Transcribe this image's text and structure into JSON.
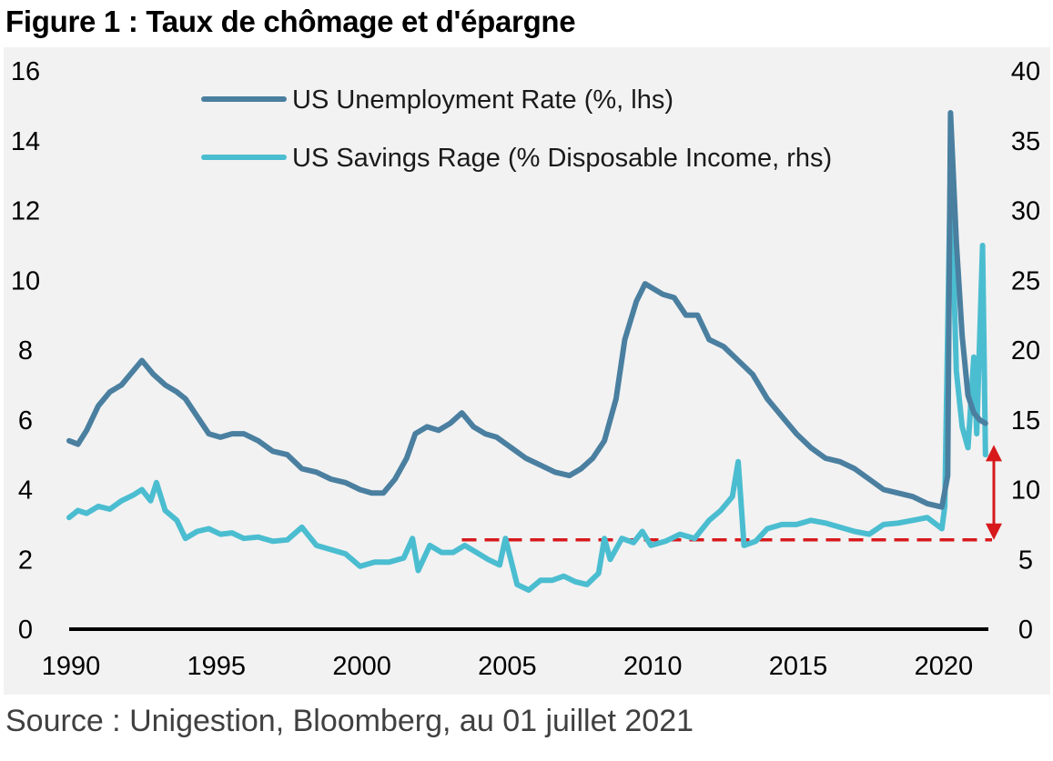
{
  "figure_title": "Figure 1 : Taux de chômage et d'épargne",
  "source": "Source : Unigestion, Bloomberg, au 01 juillet 2021",
  "chart_data": {
    "type": "line",
    "title": "",
    "xlabel": "",
    "ylabel_left": "",
    "ylabel_right": "",
    "xlim": [
      1990,
      2021.6
    ],
    "ylim_left": [
      0,
      16
    ],
    "ylim_right": [
      0,
      40
    ],
    "x_ticks": [
      1990,
      1995,
      2000,
      2005,
      2010,
      2015,
      2020
    ],
    "y_left_ticks": [
      0,
      2,
      4,
      6,
      8,
      10,
      12,
      14,
      16
    ],
    "y_right_ticks": [
      0,
      5,
      10,
      15,
      20,
      25,
      30,
      35,
      40
    ],
    "grid": false,
    "legend_position": "top-left",
    "series": [
      {
        "name": "US Unemployment Rate (%, lhs)",
        "axis": "left",
        "color": "#4a7fa0",
        "x": [
          1990.0,
          1990.3,
          1990.6,
          1991.0,
          1991.4,
          1991.8,
          1992.2,
          1992.5,
          1992.9,
          1993.3,
          1993.7,
          1994.0,
          1994.4,
          1994.8,
          1995.2,
          1995.6,
          1996.0,
          1996.5,
          1997.0,
          1997.5,
          1998.0,
          1998.5,
          1999.0,
          1999.5,
          2000.0,
          2000.4,
          2000.8,
          2001.2,
          2001.6,
          2001.9,
          2002.3,
          2002.7,
          2003.1,
          2003.5,
          2003.9,
          2004.3,
          2004.7,
          2005.2,
          2005.7,
          2006.2,
          2006.7,
          2007.2,
          2007.6,
          2008.0,
          2008.4,
          2008.8,
          2009.1,
          2009.5,
          2009.8,
          2010.0,
          2010.4,
          2010.8,
          2011.2,
          2011.6,
          2012.0,
          2012.5,
          2013.0,
          2013.5,
          2014.0,
          2014.5,
          2015.0,
          2015.5,
          2016.0,
          2016.5,
          2017.0,
          2017.5,
          2018.0,
          2018.5,
          2019.0,
          2019.5,
          2020.0,
          2020.2,
          2020.3,
          2020.5,
          2020.7,
          2020.9,
          2021.1,
          2021.3,
          2021.5
        ],
        "values": [
          5.4,
          5.3,
          5.7,
          6.4,
          6.8,
          7.0,
          7.4,
          7.7,
          7.3,
          7.0,
          6.8,
          6.6,
          6.1,
          5.6,
          5.5,
          5.6,
          5.6,
          5.4,
          5.1,
          5.0,
          4.6,
          4.5,
          4.3,
          4.2,
          4.0,
          3.9,
          3.9,
          4.3,
          4.9,
          5.6,
          5.8,
          5.7,
          5.9,
          6.2,
          5.8,
          5.6,
          5.5,
          5.2,
          4.9,
          4.7,
          4.5,
          4.4,
          4.6,
          4.9,
          5.4,
          6.6,
          8.3,
          9.4,
          9.9,
          9.8,
          9.6,
          9.5,
          9.0,
          9.0,
          8.3,
          8.1,
          7.7,
          7.3,
          6.6,
          6.1,
          5.6,
          5.2,
          4.9,
          4.8,
          4.6,
          4.3,
          4.0,
          3.9,
          3.8,
          3.6,
          3.5,
          4.4,
          14.8,
          11.1,
          8.4,
          6.7,
          6.2,
          6.0,
          5.9
        ]
      },
      {
        "name": "US Savings Rage (% Disposable Income, rhs)",
        "axis": "right",
        "color": "#4bbdd0",
        "x": [
          1990.0,
          1990.3,
          1990.6,
          1991.0,
          1991.4,
          1991.8,
          1992.2,
          1992.5,
          1992.8,
          1993.0,
          1993.3,
          1993.7,
          1994.0,
          1994.4,
          1994.8,
          1995.2,
          1995.6,
          1996.0,
          1996.5,
          1997.0,
          1997.5,
          1998.0,
          1998.5,
          1999.0,
          1999.5,
          2000.0,
          2000.5,
          2001.0,
          2001.5,
          2001.8,
          2002.0,
          2002.4,
          2002.8,
          2003.2,
          2003.6,
          2004.0,
          2004.4,
          2004.8,
          2005.0,
          2005.4,
          2005.8,
          2006.2,
          2006.6,
          2007.0,
          2007.4,
          2007.8,
          2008.2,
          2008.4,
          2008.6,
          2009.0,
          2009.4,
          2009.7,
          2010.0,
          2010.5,
          2011.0,
          2011.5,
          2012.0,
          2012.4,
          2012.8,
          2013.0,
          2013.2,
          2013.6,
          2014.0,
          2014.5,
          2015.0,
          2015.5,
          2016.0,
          2016.5,
          2017.0,
          2017.5,
          2018.0,
          2018.5,
          2019.0,
          2019.5,
          2020.0,
          2020.1,
          2020.3,
          2020.5,
          2020.7,
          2020.9,
          2021.1,
          2021.2,
          2021.4,
          2021.5
        ],
        "values": [
          8.0,
          8.5,
          8.3,
          8.8,
          8.6,
          9.2,
          9.6,
          10.0,
          9.2,
          10.5,
          8.5,
          7.8,
          6.5,
          7.0,
          7.2,
          6.8,
          6.9,
          6.5,
          6.6,
          6.3,
          6.4,
          7.3,
          6.0,
          5.7,
          5.4,
          4.5,
          4.8,
          4.8,
          5.1,
          6.5,
          4.2,
          6.0,
          5.5,
          5.5,
          6.0,
          5.5,
          5.0,
          4.6,
          6.5,
          3.2,
          2.8,
          3.5,
          3.5,
          3.8,
          3.4,
          3.2,
          4.0,
          6.5,
          5.0,
          6.5,
          6.2,
          7.0,
          6.0,
          6.3,
          6.8,
          6.5,
          7.8,
          8.5,
          9.5,
          12.0,
          6.0,
          6.3,
          7.2,
          7.5,
          7.5,
          7.8,
          7.6,
          7.3,
          7.0,
          6.8,
          7.5,
          7.6,
          7.8,
          8.0,
          7.2,
          8.8,
          33.5,
          18.5,
          14.5,
          13.0,
          19.5,
          14.0,
          27.5,
          12.5
        ]
      }
    ],
    "annotations": {
      "reference_level_rhs": 6.4,
      "reference_from_year": 2003.5,
      "double_arrow_rhs_range": [
        6.4,
        13.2
      ],
      "annotation_color": "#d7191c"
    }
  }
}
